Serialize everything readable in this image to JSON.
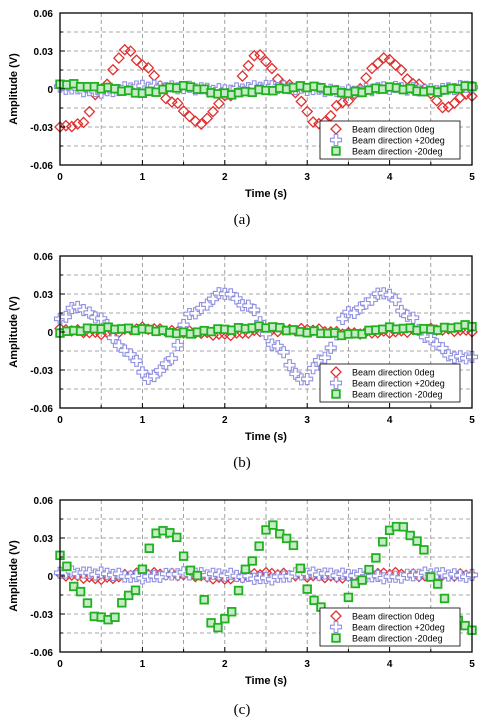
{
  "chart_data": [
    {
      "type": "scatter",
      "panel_label": "(a)",
      "xlabel": "Time (s)",
      "ylabel": "Amplitude (V)",
      "xlim": [
        0,
        5
      ],
      "ylim": [
        -0.06,
        0.06
      ],
      "x_ticks": [
        "0",
        "1",
        "2",
        "3",
        "4",
        "5"
      ],
      "y_ticks": [
        "0.06",
        "0.03",
        "0",
        "-0.03",
        "-0.06"
      ],
      "grid": true,
      "legend_position": "bottom-right",
      "series": [
        {
          "name": "Beam direction 0deg",
          "marker": "diamond",
          "color": "#e03030",
          "x": [
            0,
            0.25,
            0.5,
            0.8,
            1.05,
            1.35,
            1.7,
            2.05,
            2.4,
            2.75,
            3.15,
            3.45,
            3.95,
            4.35,
            4.7,
            4.9
          ],
          "y": [
            -0.03,
            -0.028,
            0,
            0.031,
            0.017,
            -0.01,
            -0.027,
            -0.005,
            0.027,
            0.003,
            -0.028,
            -0.01,
            0.024,
            0.003,
            -0.015,
            -0.005
          ]
        },
        {
          "name": "Beam direction +20deg",
          "marker": "cross",
          "color": "#9090e0",
          "x": [
            0,
            0.5,
            1,
            1.5,
            2,
            2.5,
            3,
            3.5,
            4,
            4.5,
            5
          ],
          "y": [
            0.001,
            -0.002,
            0.002,
            0.001,
            -0.001,
            0.002,
            0,
            -0.002,
            0.001,
            -0.001,
            0.002
          ]
        },
        {
          "name": "Beam direction -20deg",
          "marker": "square",
          "color": "#20b020",
          "x": [
            0,
            0.5,
            1,
            1.5,
            2,
            2.5,
            3,
            3.5,
            4,
            4.5,
            5
          ],
          "y": [
            0.004,
            0.001,
            -0.003,
            0.002,
            -0.004,
            -0.001,
            0.002,
            -0.003,
            0.001,
            -0.002,
            0.002
          ]
        }
      ]
    },
    {
      "type": "scatter",
      "panel_label": "(b)",
      "xlabel": "Time (s)",
      "ylabel": "Amplitude (V)",
      "xlim": [
        0,
        5
      ],
      "ylim": [
        -0.06,
        0.06
      ],
      "x_ticks": [
        "0",
        "1",
        "2",
        "3",
        "4",
        "5"
      ],
      "y_ticks": [
        "0.06",
        "0.03",
        "0",
        "-0.03",
        "-0.06"
      ],
      "grid": true,
      "legend_position": "bottom-right",
      "series": [
        {
          "name": "Beam direction 0deg",
          "marker": "diamond",
          "color": "#e03030",
          "x": [
            0,
            0.5,
            1,
            1.5,
            2,
            2.5,
            3,
            3.5,
            4,
            4.5,
            5
          ],
          "y": [
            0.002,
            -0.001,
            0.003,
            0,
            -0.002,
            0.001,
            0.002,
            -0.001,
            0,
            0.002,
            0.001
          ]
        },
        {
          "name": "Beam direction +20deg",
          "marker": "cross",
          "color": "#9090e0",
          "x": [
            0,
            0.2,
            0.45,
            0.8,
            1.1,
            1.3,
            1.6,
            2.0,
            2.3,
            2.6,
            2.95,
            3.2,
            3.5,
            3.95,
            4.25,
            4.45,
            4.8
          ],
          "y": [
            0.01,
            0.02,
            0.012,
            -0.015,
            -0.037,
            -0.025,
            0.015,
            0.031,
            0.02,
            -0.01,
            -0.038,
            -0.02,
            0.015,
            0.031,
            0.012,
            -0.005,
            -0.02
          ]
        },
        {
          "name": "Beam direction -20deg",
          "marker": "square",
          "color": "#20b020",
          "x": [
            0,
            0.5,
            1,
            1.5,
            2,
            2.5,
            3,
            3.5,
            4,
            4.5,
            5
          ],
          "y": [
            0,
            0.003,
            0.002,
            -0.001,
            0.002,
            0.004,
            0,
            -0.002,
            0.003,
            0.002,
            0.005
          ]
        }
      ]
    },
    {
      "type": "scatter",
      "panel_label": "(c)",
      "xlabel": "Time (s)",
      "ylabel": "Amplitude (V)",
      "xlim": [
        0,
        5
      ],
      "ylim": [
        -0.06,
        0.06
      ],
      "x_ticks": [
        "0",
        "1",
        "2",
        "3",
        "4",
        "5"
      ],
      "y_ticks": [
        "0.06",
        "0.03",
        "0",
        "-0.03",
        "-0.06"
      ],
      "grid": true,
      "legend_position": "bottom-right",
      "series": [
        {
          "name": "Beam direction 0deg",
          "marker": "diamond",
          "color": "#e03030",
          "x": [
            0,
            0.5,
            1,
            1.5,
            2,
            2.5,
            3,
            3.5,
            4,
            4.5,
            5
          ],
          "y": [
            0.001,
            -0.002,
            0.002,
            0.001,
            -0.002,
            0.002,
            0,
            -0.001,
            0.002,
            0,
            0.001
          ]
        },
        {
          "name": "Beam direction +20deg",
          "marker": "cross",
          "color": "#9090e0",
          "x": [
            0,
            0.5,
            1,
            1.5,
            2,
            2.5,
            3,
            3.5,
            4,
            4.5,
            5
          ],
          "y": [
            0.003,
            0.002,
            -0.001,
            0.002,
            0.001,
            -0.002,
            0.002,
            0.001,
            -0.001,
            0.002,
            0
          ]
        },
        {
          "name": "Beam direction -20deg",
          "marker": "square",
          "color": "#20b020",
          "x": [
            0,
            0.05,
            0.2,
            0.45,
            0.6,
            0.85,
            1.2,
            1.35,
            1.6,
            1.9,
            2.05,
            2.3,
            2.55,
            2.75,
            3.1,
            3.35,
            3.6,
            4.1,
            4.35,
            4.55,
            4.8,
            5.0
          ],
          "y": [
            0.017,
            0.009,
            -0.01,
            -0.032,
            -0.035,
            -0.015,
            0.035,
            0.035,
            0.005,
            -0.042,
            -0.03,
            0.01,
            0.04,
            0.03,
            -0.02,
            -0.042,
            -0.005,
            0.04,
            0.028,
            -0.005,
            -0.035,
            -0.042
          ]
        }
      ]
    }
  ]
}
